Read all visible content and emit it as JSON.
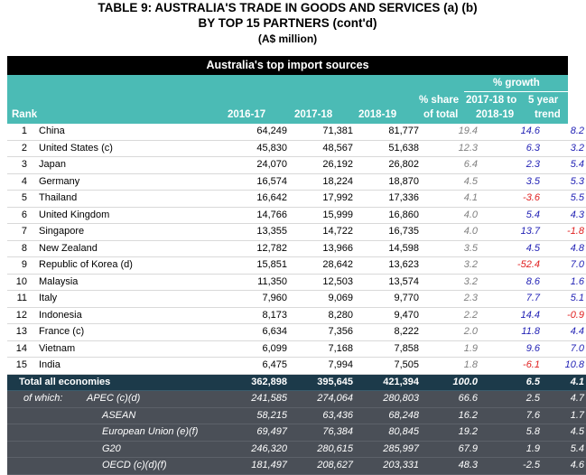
{
  "title_line1": "TABLE 9: AUSTRALIA'S TRADE IN GOODS AND SERVICES (a) (b)",
  "title_line2": "BY TOP 15 PARTNERS (cont'd)",
  "title_line3": "(A$ million)",
  "banner": "Australia's top import sources",
  "headers": {
    "rank": "Rank",
    "y1": "2016-17",
    "y2": "2017-18",
    "y3": "2018-19",
    "share1": "% share",
    "share2": "of total",
    "growth": "% growth",
    "g1a": "2017-18 to",
    "g1b": "2018-19",
    "g2a": "5 year",
    "g2b": "trend"
  },
  "rows": [
    {
      "rank": "1",
      "name": "China",
      "y1": "64,249",
      "y2": "71,381",
      "y3": "81,777",
      "share": "19.4",
      "g1": "14.6",
      "g2": "8.2"
    },
    {
      "rank": "2",
      "name": "United States (c)",
      "y1": "45,830",
      "y2": "48,567",
      "y3": "51,638",
      "share": "12.3",
      "g1": "6.3",
      "g2": "3.2"
    },
    {
      "rank": "3",
      "name": "Japan",
      "y1": "24,070",
      "y2": "26,192",
      "y3": "26,802",
      "share": "6.4",
      "g1": "2.3",
      "g2": "5.4"
    },
    {
      "rank": "4",
      "name": "Germany",
      "y1": "16,574",
      "y2": "18,224",
      "y3": "18,870",
      "share": "4.5",
      "g1": "3.5",
      "g2": "5.3"
    },
    {
      "rank": "5",
      "name": "Thailand",
      "y1": "16,642",
      "y2": "17,992",
      "y3": "17,336",
      "share": "4.1",
      "g1": "-3.6",
      "g2": "5.5"
    },
    {
      "rank": "6",
      "name": "United Kingdom",
      "y1": "14,766",
      "y2": "15,999",
      "y3": "16,860",
      "share": "4.0",
      "g1": "5.4",
      "g2": "4.3"
    },
    {
      "rank": "7",
      "name": "Singapore",
      "y1": "13,355",
      "y2": "14,722",
      "y3": "16,735",
      "share": "4.0",
      "g1": "13.7",
      "g2": "-1.8"
    },
    {
      "rank": "8",
      "name": "New Zealand",
      "y1": "12,782",
      "y2": "13,966",
      "y3": "14,598",
      "share": "3.5",
      "g1": "4.5",
      "g2": "4.8"
    },
    {
      "rank": "9",
      "name": "Republic of Korea (d)",
      "y1": "15,851",
      "y2": "28,642",
      "y3": "13,623",
      "share": "3.2",
      "g1": "-52.4",
      "g2": "7.0"
    },
    {
      "rank": "10",
      "name": "Malaysia",
      "y1": "11,350",
      "y2": "12,503",
      "y3": "13,574",
      "share": "3.2",
      "g1": "8.6",
      "g2": "1.6"
    },
    {
      "rank": "11",
      "name": "Italy",
      "y1": "7,960",
      "y2": "9,069",
      "y3": "9,770",
      "share": "2.3",
      "g1": "7.7",
      "g2": "5.1"
    },
    {
      "rank": "12",
      "name": "Indonesia",
      "y1": "8,173",
      "y2": "8,280",
      "y3": "9,470",
      "share": "2.2",
      "g1": "14.4",
      "g2": "-0.9"
    },
    {
      "rank": "13",
      "name": "France (c)",
      "y1": "6,634",
      "y2": "7,356",
      "y3": "8,222",
      "share": "2.0",
      "g1": "11.8",
      "g2": "4.4"
    },
    {
      "rank": "14",
      "name": "Vietnam",
      "y1": "6,099",
      "y2": "7,168",
      "y3": "7,858",
      "share": "1.9",
      "g1": "9.6",
      "g2": "7.0"
    },
    {
      "rank": "15",
      "name": "India",
      "y1": "6,475",
      "y2": "7,994",
      "y3": "7,505",
      "share": "1.8",
      "g1": "-6.1",
      "g2": "10.8"
    }
  ],
  "total": {
    "name": "Total all economies",
    "y1": "362,898",
    "y2": "395,645",
    "y3": "421,394",
    "share": "100.0",
    "g1": "6.5",
    "g2": "4.1"
  },
  "of_which_label": "of which:",
  "subs": [
    {
      "name": "APEC (c)(d)",
      "y1": "241,585",
      "y2": "274,064",
      "y3": "280,803",
      "share": "66.6",
      "g1": "2.5",
      "g2": "4.7"
    },
    {
      "name": "ASEAN",
      "y1": "58,215",
      "y2": "63,436",
      "y3": "68,248",
      "share": "16.2",
      "g1": "7.6",
      "g2": "1.7"
    },
    {
      "name": "European Union (e)(f)",
      "y1": "69,497",
      "y2": "76,384",
      "y3": "80,845",
      "share": "19.2",
      "g1": "5.8",
      "g2": "4.5"
    },
    {
      "name": "G20",
      "y1": "246,320",
      "y2": "280,615",
      "y3": "285,997",
      "share": "67.9",
      "g1": "1.9",
      "g2": "5.4"
    },
    {
      "name": "OECD (c)(d)(f)",
      "y1": "181,497",
      "y2": "208,627",
      "y3": "203,331",
      "share": "48.3",
      "g1": "-2.5",
      "g2": "4.6"
    }
  ],
  "colors": {
    "header": "#4bbbb5",
    "banner": "#000000",
    "total": "#1c3a4a",
    "sub": "#4a4f57",
    "positive": "#1f1fb4",
    "negative": "#e02020"
  }
}
